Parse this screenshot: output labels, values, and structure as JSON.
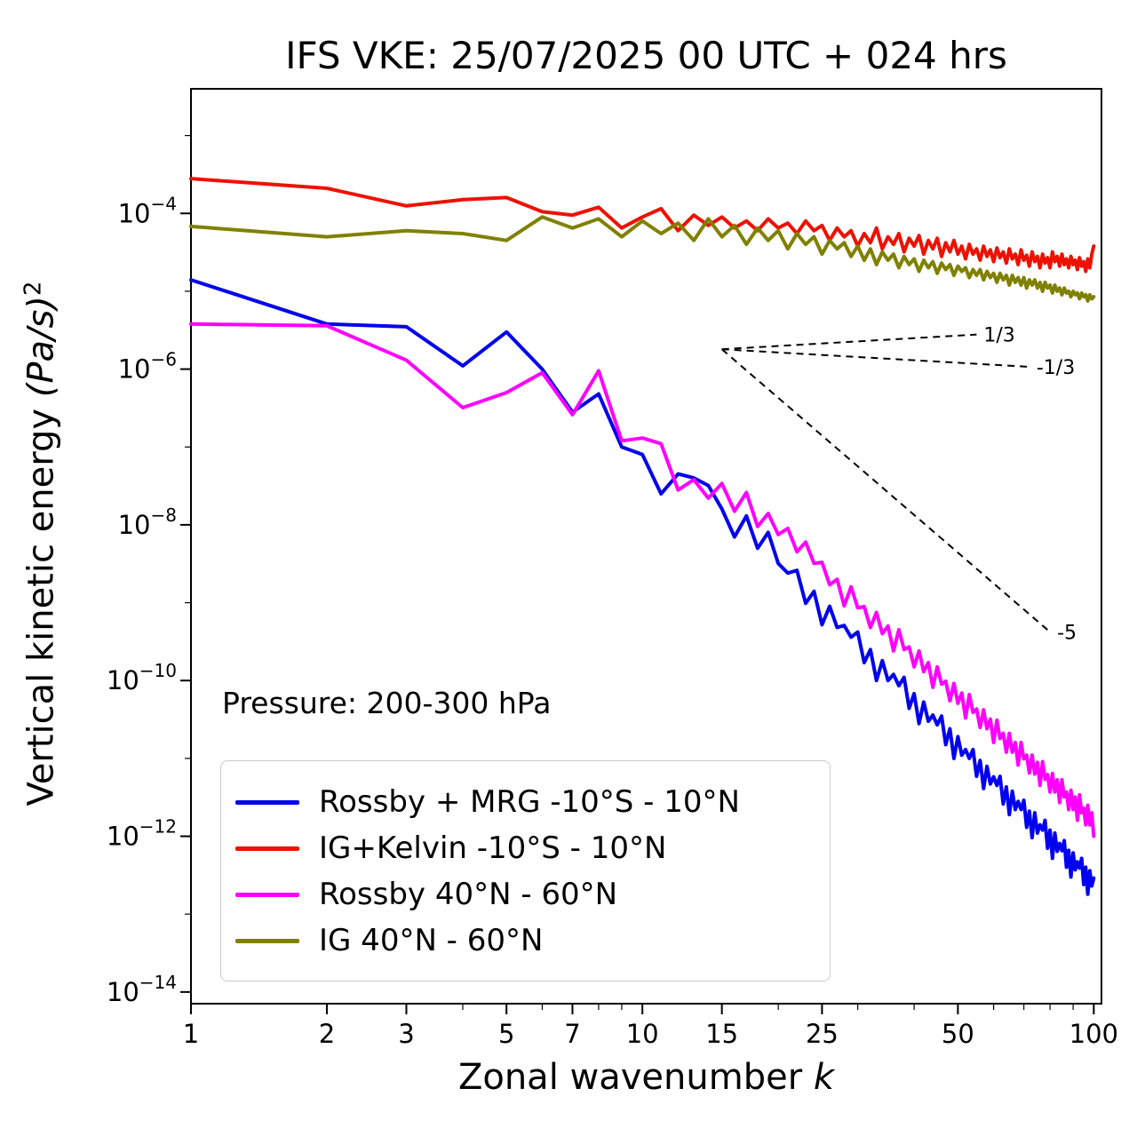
{
  "chart_data": {
    "type": "line",
    "title": "IFS VKE: 25/07/2025 00 UTC + 024 hrs",
    "xlabel": {
      "pre": "Zonal wavenumber ",
      "var": "k"
    },
    "ylabel": {
      "pre": "Vertical kinetic energy ",
      "units": "(Pa/s)",
      "sup": "2"
    },
    "annotation": "Pressure: 200-300 hPa",
    "x_axis": {
      "scale": "log",
      "min": 1,
      "max": 104,
      "major_ticks": [
        {
          "v": 1,
          "label": "1"
        },
        {
          "v": 2,
          "label": "2"
        },
        {
          "v": 3,
          "label": "3"
        },
        {
          "v": 5,
          "label": "5"
        },
        {
          "v": 7,
          "label": "7"
        },
        {
          "v": 10,
          "label": "10"
        },
        {
          "v": 15,
          "label": "15"
        },
        {
          "v": 25,
          "label": "25"
        },
        {
          "v": 50,
          "label": "50"
        },
        {
          "v": 100,
          "label": "100"
        }
      ],
      "minor_ticks": [
        4,
        6,
        8,
        9,
        20,
        30,
        40,
        60,
        70,
        80,
        90
      ]
    },
    "y_axis": {
      "scale": "log",
      "top_exp": -2.4,
      "bottom_exp": -14.15,
      "major_tick_exps": [
        -4,
        -6,
        -8,
        -10,
        -12,
        -14
      ],
      "minor_tick_exps": [
        -3,
        -5,
        -7,
        -9,
        -11,
        -13
      ]
    },
    "series": [
      {
        "id": "rossby-mrg-tropics",
        "name": "Rossby + MRG -10°S - 10°N",
        "color": "#0000ee",
        "x_start": 1,
        "x_step": 1,
        "values": [
          1.4e-05,
          3.8e-06,
          3.5e-06,
          1.1e-06,
          3e-06,
          1e-06,
          2.8e-07,
          4.8e-07,
          1e-07,
          8e-08,
          2.5e-08,
          4.5e-08,
          4e-08,
          3.2e-08,
          1.6e-08,
          7e-09,
          1.3e-08,
          5e-09,
          8e-09,
          3.2e-09,
          2.4e-09,
          2.6e-09,
          9.8e-10,
          1.4e-09,
          5.2e-10,
          9e-10,
          4.8e-10,
          5.1e-10,
          3.6e-10,
          4.2e-10,
          1.7e-10,
          2.5e-10,
          1e-10,
          1.8e-10,
          1e-10,
          1.2e-10,
          8.6e-11,
          1.1e-10,
          4.4e-11,
          6.8e-11,
          2.8e-11,
          5.3e-11,
          3e-11,
          3.6e-11,
          2.7e-11,
          3.5e-11,
          1.5e-11,
          2.4e-11,
          1e-11,
          1.9e-11,
          1.1e-11,
          1.3e-11,
          1e-11,
          1.3e-11,
          5.9e-12,
          9.4e-12,
          4.1e-12,
          7.9e-12,
          4.7e-12,
          5.8e-12,
          4.5e-12,
          5.9e-12,
          2.6e-12,
          4.3e-12,
          1.9e-12,
          3.8e-12,
          2.2e-12,
          2.8e-12,
          2.2e-12,
          2.9e-12,
          1.3e-12,
          2.1e-12,
          9.6e-13,
          2e-12,
          1.1e-12,
          1.4e-12,
          1.2e-12,
          1.6e-12,
          7e-13,
          1.2e-12,
          5.2e-13,
          1.1e-12,
          6.4e-13,
          8.1e-13,
          6.5e-13,
          8.8e-13,
          4e-13,
          6.6e-13,
          3e-13,
          6.1e-13,
          3.7e-13,
          4.7e-13,
          3.9e-13,
          5.2e-13,
          2.4e-13,
          4e-13,
          1.8e-13,
          3.6e-13,
          2.3e-13,
          2.9e-13
        ]
      },
      {
        "id": "ig-kelvin-tropics",
        "name": "IG+Kelvin -10°S - 10°N",
        "color": "#ee1100",
        "x_start": 1,
        "x_step": 1,
        "values": [
          0.00028,
          0.00021,
          0.000125,
          0.00015,
          0.00016,
          0.000105,
          9.5e-05,
          0.00012,
          6.5e-05,
          9e-05,
          0.000115,
          6e-05,
          9.5e-05,
          7e-05,
          9e-05,
          6.5e-05,
          8e-05,
          6e-05,
          8.5e-05,
          6.5e-05,
          7.5e-05,
          5.5e-05,
          8e-05,
          6e-05,
          7e-05,
          4.5e-05,
          6.5e-05,
          5e-05,
          6e-05,
          3.8e-05,
          5.5e-05,
          4.2e-05,
          6.5e-05,
          3.5e-05,
          5e-05,
          4e-05,
          5.5e-05,
          3.2e-05,
          4.8e-05,
          3.8e-05,
          5.2e-05,
          3e-05,
          4.5e-05,
          3.5e-05,
          4.8e-05,
          2.8e-05,
          4.2e-05,
          3.2e-05,
          4.5e-05,
          3e-05,
          3.8e-05,
          2.6e-05,
          4e-05,
          3e-05,
          3.5e-05,
          2.5e-05,
          3.8e-05,
          2.8e-05,
          3.4e-05,
          2.4e-05,
          3.6e-05,
          2.7e-05,
          3.2e-05,
          2.3e-05,
          3.5e-05,
          2.6e-05,
          3e-05,
          2.2e-05,
          3.4e-05,
          2.5e-05,
          2.9e-05,
          2.1e-05,
          3.2e-05,
          2.4e-05,
          2.8e-05,
          2e-05,
          3e-05,
          2.3e-05,
          2.7e-05,
          2e-05,
          3.2e-05,
          2.4e-05,
          2.8e-05,
          2.1e-05,
          3e-05,
          2.2e-05,
          2.6e-05,
          2e-05,
          2.8e-05,
          2.2e-05,
          2.5e-05,
          1.9e-05,
          2.7e-05,
          2.1e-05,
          2.4e-05,
          1.8e-05,
          2.6e-05,
          2e-05,
          3e-05,
          3.8e-05
        ]
      },
      {
        "id": "rossby-midlat",
        "name": "Rossby 40°N - 60°N",
        "color": "#ff00ff",
        "x_start": 1,
        "x_step": 1,
        "values": [
          3.8e-06,
          3.6e-06,
          1.3e-06,
          3.2e-07,
          5e-07,
          9e-07,
          2.6e-07,
          9.5e-07,
          1.2e-07,
          1.3e-07,
          1.1e-07,
          2.8e-08,
          3.8e-08,
          2.2e-08,
          3.4e-08,
          1.5e-08,
          2.6e-08,
          9.5e-09,
          1.4e-08,
          7.5e-09,
          9e-09,
          4.5e-09,
          6e-09,
          3.2e-09,
          3.3e-09,
          1.7e-09,
          2e-09,
          9.1e-10,
          1.6e-09,
          8.6e-10,
          8.9e-10,
          4.8e-10,
          7.5e-10,
          4e-10,
          5e-10,
          2.4e-10,
          4.5e-10,
          2.5e-10,
          2.7e-10,
          1.5e-10,
          2.4e-10,
          1.3e-10,
          1.7e-10,
          8.2e-11,
          1.5e-10,
          9e-11,
          9.8e-11,
          5.5e-11,
          9.2e-11,
          5.1e-11,
          6.9e-11,
          3.3e-11,
          6.6e-11,
          3.9e-11,
          4.3e-11,
          2.5e-11,
          4.2e-11,
          2.4e-11,
          3.2e-11,
          1.6e-11,
          3.1e-11,
          1.8e-11,
          2.1e-11,
          1.2e-11,
          2.1e-11,
          1.2e-11,
          1.6e-11,
          8.2e-12,
          1.6e-11,
          9.9e-12,
          1.1e-11,
          6.5e-12,
          1.1e-11,
          6.3e-12,
          8.9e-12,
          4.5e-12,
          9.1e-12,
          5.4e-12,
          6.2e-12,
          3.7e-12,
          6.4e-12,
          3.7e-12,
          5.3e-12,
          2.7e-12,
          5.3e-12,
          3.2e-12,
          3.7e-12,
          2.2e-12,
          3.9e-12,
          2.2e-12,
          3.2e-12,
          1.6e-12,
          3.4e-12,
          2e-12,
          2.3e-12,
          1.4e-12,
          2.5e-12,
          1.4e-12,
          2e-12,
          1e-12
        ]
      },
      {
        "id": "ig-midlat",
        "name": "IG 40°N - 60°N",
        "color": "#808000",
        "x_start": 1,
        "x_step": 1,
        "values": [
          6.8e-05,
          5e-05,
          6e-05,
          5.5e-05,
          4.5e-05,
          9e-05,
          6.5e-05,
          8.5e-05,
          5e-05,
          8e-05,
          5.5e-05,
          7.5e-05,
          4.5e-05,
          8.5e-05,
          5e-05,
          7e-05,
          4e-05,
          6.5e-05,
          4.5e-05,
          6e-05,
          3.5e-05,
          5.5e-05,
          4e-05,
          5e-05,
          3e-05,
          4.5e-05,
          3.5e-05,
          4.2e-05,
          2.8e-05,
          3.8e-05,
          2.5e-05,
          3.5e-05,
          2.2e-05,
          3.2e-05,
          2.5e-05,
          3e-05,
          2e-05,
          2.8e-05,
          2.2e-05,
          2.6e-05,
          1.8e-05,
          2.5e-05,
          2e-05,
          2.4e-05,
          1.7e-05,
          2.3e-05,
          1.9e-05,
          2.2e-05,
          1.6e-05,
          2.1e-05,
          1.8e-05,
          2e-05,
          1.5e-05,
          1.9e-05,
          1.6e-05,
          1.9e-05,
          1.4e-05,
          1.8e-05,
          1.5e-05,
          1.7e-05,
          1.3e-05,
          1.7e-05,
          1.4e-05,
          1.6e-05,
          1.2e-05,
          1.6e-05,
          1.3e-05,
          1.5e-05,
          1.2e-05,
          1.5e-05,
          1.1e-05,
          1.4e-05,
          1.2e-05,
          1.4e-05,
          1.1e-05,
          1.3e-05,
          1e-05,
          1.3e-05,
          1.1e-05,
          1.2e-05,
          9.5e-06,
          1.2e-05,
          1e-05,
          1.1e-05,
          9e-06,
          1.1e-05,
          9.5e-06,
          1e-05,
          8.5e-06,
          1e-05,
          9e-06,
          9.5e-06,
          8e-06,
          9.5e-06,
          8.5e-06,
          9e-06,
          7.5e-06,
          9e-06,
          8e-06,
          8.5e-06
        ]
      }
    ],
    "reference_lines": [
      {
        "label": "1/3",
        "x": [
          15,
          55
        ],
        "y": [
          1.8e-06,
          2.78e-06
        ]
      },
      {
        "label": "-1/3",
        "x": [
          15,
          72
        ],
        "y": [
          1.8e-06,
          1.07e-06
        ]
      },
      {
        "label": "-5",
        "x": [
          15,
          80
        ],
        "y": [
          1.8e-06,
          4.2e-10
        ]
      }
    ],
    "legend_position": "lower left",
    "grid": false
  }
}
